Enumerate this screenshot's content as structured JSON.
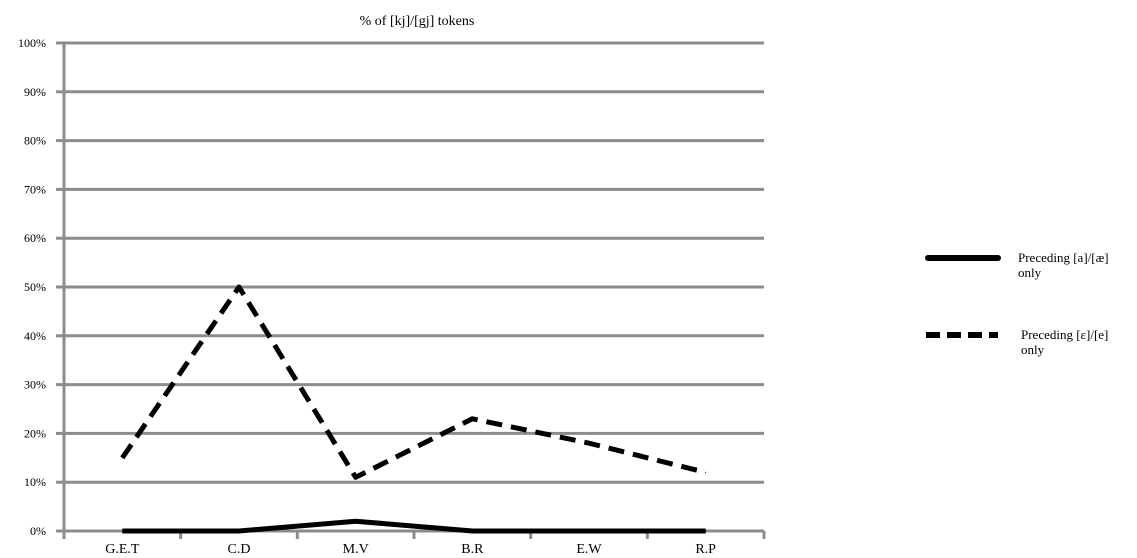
{
  "chart_data": {
    "type": "line",
    "title": "% of [kj]/[gj] tokens",
    "categories": [
      "G.E.T",
      "C.D",
      "M.V",
      "B.R",
      "E.W",
      "R.P"
    ],
    "y_ticks": [
      "0%",
      "10%",
      "20%",
      "30%",
      "40%",
      "50%",
      "60%",
      "70%",
      "80%",
      "90%",
      "100%"
    ],
    "ylim": [
      0,
      100
    ],
    "grid": true,
    "legend_position": "right",
    "series": [
      {
        "name": "Preceding [a]/[æ] only",
        "style": "solid",
        "color": "#000000",
        "values": [
          0,
          0,
          2,
          0,
          0,
          0
        ]
      },
      {
        "name": "Preceding [ɛ]/[e] only",
        "style": "dashed",
        "color": "#000000",
        "values": [
          15,
          50,
          11,
          23,
          18,
          12
        ]
      }
    ],
    "legend": [
      {
        "line1": "Preceding [a]/[æ]",
        "line2": "only"
      },
      {
        "line1": "Preceding [ɛ]/[e]",
        "line2": "only"
      }
    ]
  },
  "colors": {
    "grid": "#8c8c8c",
    "series": "#000000"
  }
}
